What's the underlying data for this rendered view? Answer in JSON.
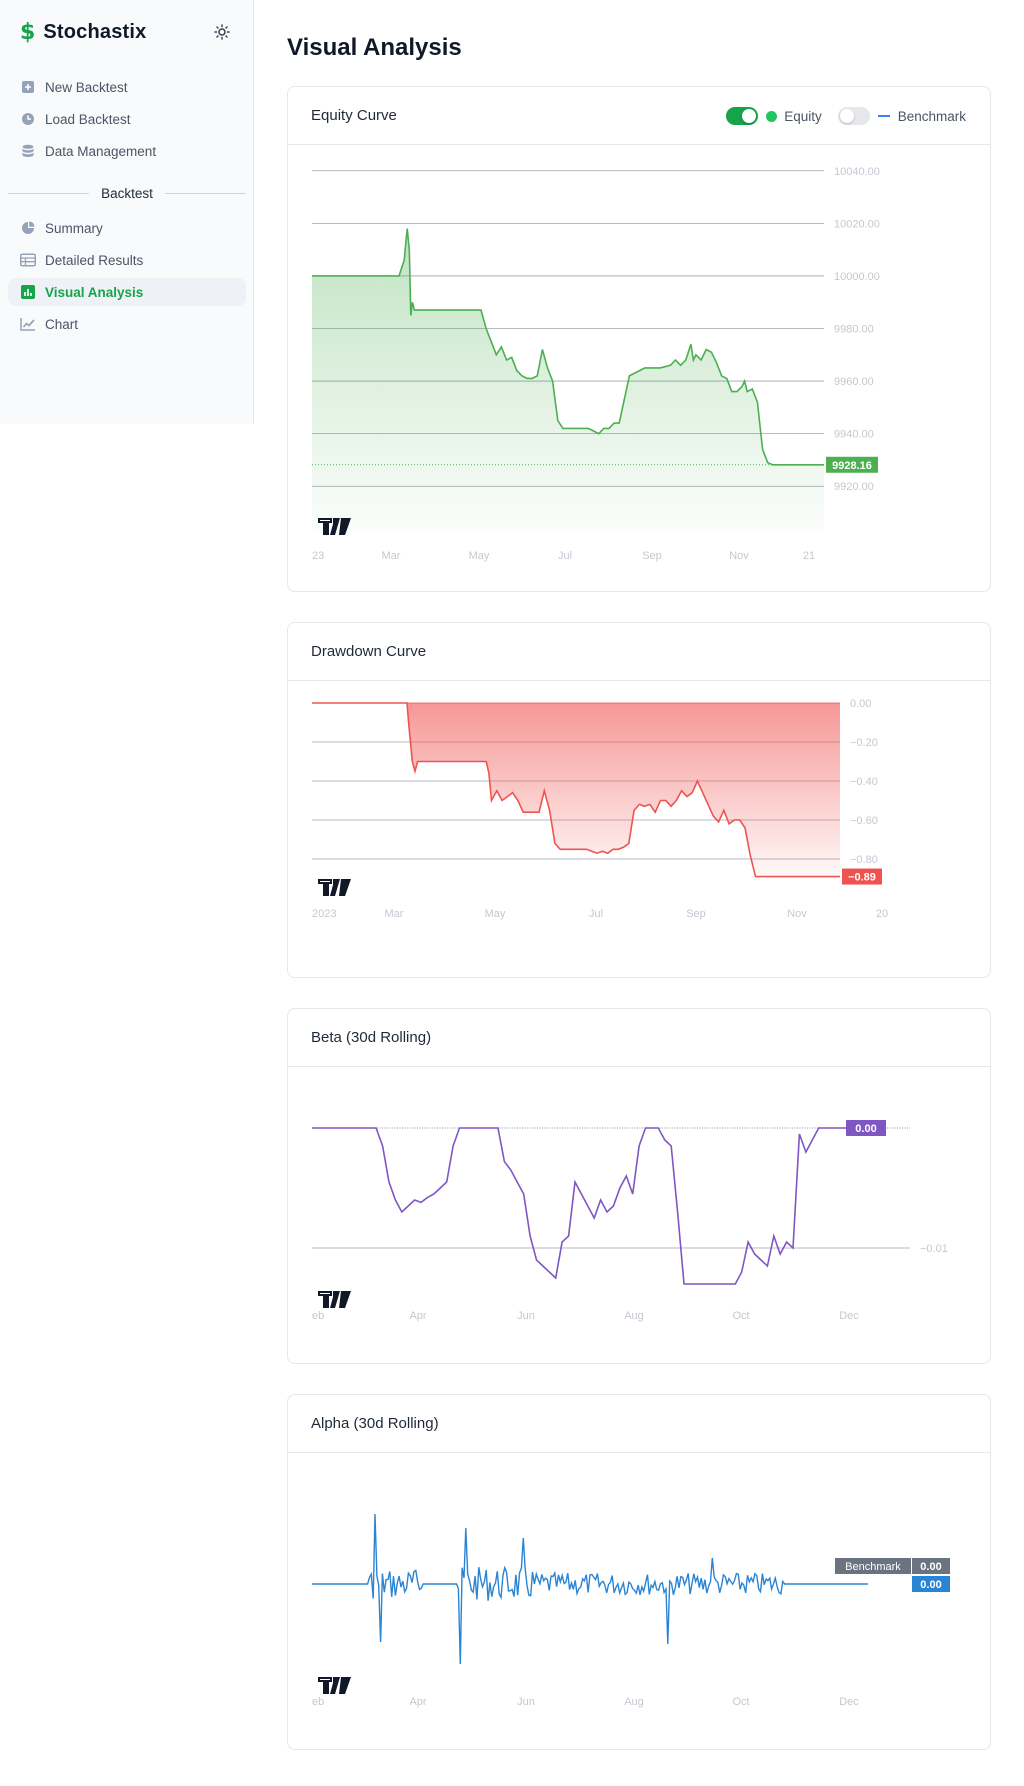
{
  "app": {
    "name": "Stochastix",
    "logo_icon": "dollar-icon"
  },
  "sidebar": {
    "top_items": [
      {
        "label": "New Backtest",
        "icon": "plus-square-icon"
      },
      {
        "label": "Load Backtest",
        "icon": "clock-icon"
      },
      {
        "label": "Data Management",
        "icon": "database-icon"
      }
    ],
    "section_label": "Backtest",
    "backtest_items": [
      {
        "label": "Summary",
        "icon": "pie-chart-icon"
      },
      {
        "label": "Detailed Results",
        "icon": "table-icon"
      },
      {
        "label": "Visual Analysis",
        "icon": "bar-chart-icon",
        "active": true
      },
      {
        "label": "Chart",
        "icon": "line-chart-icon"
      }
    ]
  },
  "page": {
    "title": "Visual Analysis"
  },
  "colors": {
    "accent": "#16a34a",
    "equity": "#4caf50",
    "drawdown": "#ef5350",
    "beta": "#7e57c2",
    "alpha": "#2a84d4",
    "benchmark": "#3b82f6"
  },
  "charts": {
    "equity": {
      "title": "Equity Curve",
      "legend": {
        "equity_label": "Equity",
        "benchmark_label": "Benchmark",
        "equity_on": true,
        "benchmark_on": false
      },
      "last_value_label": "9928.16"
    },
    "drawdown": {
      "title": "Drawdown Curve",
      "last_value_label": "−0.89"
    },
    "beta": {
      "title": "Beta (30d Rolling)",
      "last_value_label": "0.00"
    },
    "alpha": {
      "title": "Alpha (30d Rolling)",
      "last_value_label": "0.00",
      "benchmark_tag": "Benchmark",
      "benchmark_value_label": "0.00"
    }
  },
  "chart_data": [
    {
      "type": "area",
      "title": "Equity Curve",
      "xlabel": "",
      "ylabel": "",
      "x_tick_labels": [
        "23",
        "Mar",
        "May",
        "Jul",
        "Sep",
        "Nov",
        "21"
      ],
      "y_tick_labels": [
        "10040.00",
        "10020.00",
        "10000.00",
        "9980.00",
        "9960.00",
        "9940.00",
        "9920.00"
      ],
      "ylim": [
        9914,
        10046
      ],
      "series": [
        {
          "name": "Equity",
          "x": [
            0,
            10,
            17,
            18,
            18.6,
            19,
            19.3,
            19.6,
            20,
            22,
            28,
            33,
            34,
            35,
            36,
            37,
            38,
            39,
            40,
            41,
            42,
            43,
            44,
            45,
            46,
            47,
            48,
            49,
            50,
            51,
            52,
            53,
            54,
            55,
            56,
            57,
            58,
            59,
            60,
            62,
            65,
            68,
            70,
            71,
            72,
            73,
            74,
            74.5,
            75,
            76,
            77,
            78,
            79,
            80,
            81,
            82,
            83,
            84,
            84.5,
            85,
            86,
            87,
            88,
            89,
            90,
            91,
            92,
            100
          ],
          "values": [
            10000,
            10000,
            10000,
            10006,
            10018,
            10010,
            9985,
            9990,
            9987,
            9987,
            9987,
            9987,
            9980,
            9975,
            9970,
            9973,
            9968,
            9969,
            9964,
            9962,
            9961,
            9961,
            9962,
            9972,
            9965,
            9960,
            9945,
            9942,
            9942,
            9942,
            9942,
            9942,
            9942,
            9941,
            9940,
            9942,
            9942,
            9944,
            9944,
            9962,
            9965,
            9965,
            9966,
            9968,
            9966,
            9968,
            9974,
            9968,
            9970,
            9968,
            9972,
            9971,
            9967,
            9962,
            9961,
            9956,
            9956,
            9958,
            9960,
            9956,
            9957,
            9952,
            9934,
            9929,
            9928.16,
            9928.16,
            9928.16,
            9928.16
          ]
        }
      ],
      "last_value": 9928.16,
      "grid": true
    },
    {
      "type": "area",
      "title": "Drawdown Curve",
      "x_tick_labels": [
        "2023",
        "Mar",
        "May",
        "Jul",
        "Sep",
        "Nov",
        "20"
      ],
      "y_tick_labels": [
        "0.00",
        "−0.20",
        "−0.40",
        "−0.60",
        "−0.80"
      ],
      "ylim": [
        -0.92,
        0.02
      ],
      "series": [
        {
          "name": "Drawdown",
          "x": [
            0,
            18,
            18.3,
            19,
            19.5,
            20,
            22,
            30,
            33,
            33.5,
            34,
            35,
            36,
            37,
            38,
            39,
            40,
            41,
            42,
            43,
            44,
            45,
            46,
            47,
            48,
            49,
            50,
            51,
            52,
            53,
            54,
            55,
            56,
            57,
            58,
            59,
            60,
            61,
            62,
            63,
            64,
            65,
            66,
            67,
            68,
            69,
            70,
            71,
            72,
            73,
            74,
            75,
            76,
            77,
            78,
            79,
            80,
            81,
            82,
            83,
            84,
            85,
            86,
            87,
            88,
            100
          ],
          "values": [
            0,
            0,
            -0.1,
            -0.3,
            -0.35,
            -0.3,
            -0.3,
            -0.3,
            -0.3,
            -0.36,
            -0.5,
            -0.45,
            -0.5,
            -0.48,
            -0.46,
            -0.5,
            -0.56,
            -0.56,
            -0.56,
            -0.56,
            -0.45,
            -0.55,
            -0.72,
            -0.75,
            -0.75,
            -0.75,
            -0.75,
            -0.75,
            -0.75,
            -0.76,
            -0.77,
            -0.76,
            -0.77,
            -0.75,
            -0.75,
            -0.74,
            -0.72,
            -0.55,
            -0.52,
            -0.53,
            -0.52,
            -0.56,
            -0.5,
            -0.5,
            -0.53,
            -0.5,
            -0.45,
            -0.48,
            -0.46,
            -0.4,
            -0.46,
            -0.52,
            -0.58,
            -0.61,
            -0.55,
            -0.62,
            -0.6,
            -0.6,
            -0.64,
            -0.78,
            -0.89,
            -0.89,
            -0.89,
            -0.89,
            -0.89,
            -0.89
          ]
        }
      ],
      "last_value": -0.89,
      "grid": true
    },
    {
      "type": "line",
      "title": "Beta (30d Rolling)",
      "x_tick_labels": [
        "eb",
        "Apr",
        "Jun",
        "Aug",
        "Oct",
        "Dec"
      ],
      "y_tick_labels": [
        "−0.01"
      ],
      "ylim": [
        -0.0135,
        0.0025
      ],
      "series": [
        {
          "name": "Beta",
          "values": [
            0,
            0,
            0,
            0,
            0,
            0,
            0,
            0,
            0,
            0,
            0,
            -0.0015,
            -0.0045,
            -0.006,
            -0.007,
            -0.0065,
            -0.006,
            -0.0062,
            -0.0058,
            -0.0055,
            -0.005,
            -0.0045,
            -0.0015,
            0,
            0,
            0,
            0,
            0,
            0,
            0,
            -0.0028,
            -0.0035,
            -0.0045,
            -0.0055,
            -0.009,
            -0.011,
            -0.0115,
            -0.012,
            -0.0125,
            -0.0095,
            -0.009,
            -0.0045,
            -0.0055,
            -0.0065,
            -0.0075,
            -0.006,
            -0.007,
            -0.0065,
            -0.005,
            -0.004,
            -0.0055,
            -0.0015,
            0,
            0,
            0,
            -0.001,
            -0.0015,
            -0.007,
            -0.013,
            -0.013,
            -0.013,
            -0.013,
            -0.013,
            -0.013,
            -0.013,
            -0.013,
            -0.013,
            -0.012,
            -0.0095,
            -0.0105,
            -0.011,
            -0.0115,
            -0.009,
            -0.0105,
            -0.0095,
            -0.01,
            -0.0005,
            -0.002,
            -0.001,
            0,
            0,
            0,
            0,
            0,
            0,
            0,
            0,
            0
          ]
        }
      ],
      "last_value": 0.0,
      "grid": true
    },
    {
      "type": "line",
      "title": "Alpha (30d Rolling)",
      "x_tick_labels": [
        "eb",
        "Apr",
        "Jun",
        "Aug",
        "Oct",
        "Dec"
      ],
      "ylim": [
        -1,
        1
      ],
      "series": [
        {
          "name": "Alpha",
          "values": []
        }
      ],
      "last_value": 0.0,
      "benchmark_value": 0.0
    }
  ]
}
